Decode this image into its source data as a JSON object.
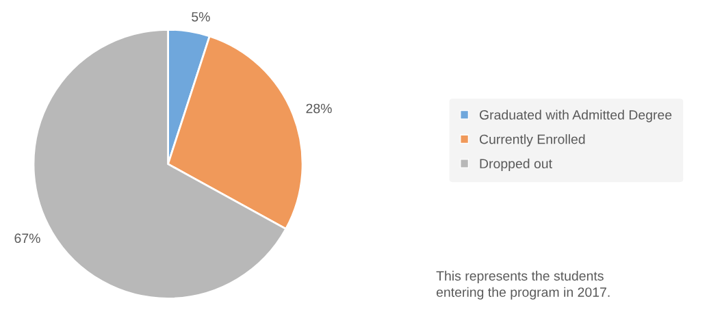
{
  "chart_data": {
    "type": "pie",
    "categories": [
      "Graduated with Admitted Degree",
      "Currently Enrolled",
      "Dropped out"
    ],
    "values": [
      5,
      28,
      67
    ],
    "colors": [
      "#6fa7dc",
      "#f0995a",
      "#b8b8b8"
    ],
    "value_labels": [
      "5%",
      "28%",
      "67%"
    ],
    "legend": "right",
    "annotations": [
      "This represents the students\nentering the program in 2017."
    ]
  }
}
